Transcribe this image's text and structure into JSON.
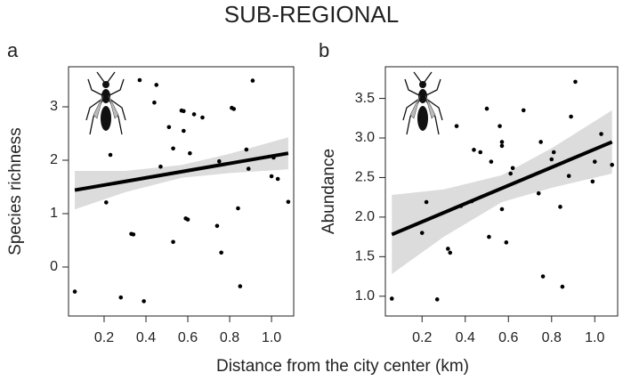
{
  "title": "SUB-REGIONAL",
  "xlabel": "Distance from the city center (km)",
  "chart_data": [
    {
      "type": "scatter",
      "panel_label": "a",
      "ylabel": "Species richness",
      "color": "#000000",
      "band_color": "#dcdcdc",
      "xlim": [
        0.03,
        1.106
      ],
      "ylim": [
        -0.917,
        3.75
      ],
      "xticks": [
        0.2,
        0.4,
        0.6,
        0.8,
        {
          "value": 1.0,
          "label": "1.0"
        }
      ],
      "yticks": [
        0,
        1,
        2,
        3
      ],
      "x": [
        0.06,
        0.21,
        0.23,
        0.28,
        0.33,
        0.34,
        0.37,
        0.39,
        0.44,
        0.45,
        0.47,
        0.51,
        0.53,
        0.53,
        0.57,
        0.58,
        0.58,
        0.59,
        0.6,
        0.61,
        0.63,
        0.67,
        0.74,
        0.75,
        0.76,
        0.81,
        0.82,
        0.84,
        0.85,
        0.88,
        0.89,
        0.91,
        1.0,
        1.01,
        1.03,
        1.08
      ],
      "values": [
        -0.46,
        1.21,
        2.1,
        -0.57,
        0.62,
        0.61,
        3.5,
        -0.64,
        3.08,
        3.41,
        1.88,
        2.62,
        0.47,
        2.22,
        2.93,
        2.92,
        2.55,
        0.91,
        0.89,
        2.13,
        2.86,
        2.8,
        0.77,
        1.98,
        0.27,
        2.98,
        2.96,
        1.1,
        -0.36,
        2.2,
        1.84,
        3.49,
        1.7,
        2.05,
        1.65,
        1.22
      ],
      "fit": {
        "x": [
          0.06,
          1.08
        ],
        "values": [
          1.44,
          2.13
        ]
      },
      "band": {
        "x": [
          0.06,
          0.3,
          0.57,
          0.8,
          1.08
        ],
        "lower": [
          1.08,
          1.4,
          1.67,
          1.76,
          1.83
        ],
        "upper": [
          1.8,
          1.8,
          1.91,
          2.12,
          2.43
        ]
      }
    },
    {
      "type": "scatter",
      "panel_label": "b",
      "ylabel": "Abundance",
      "color": "#000000",
      "band_color": "#dcdcdc",
      "xlim": [
        0.03,
        1.106
      ],
      "ylim": [
        0.75,
        3.9
      ],
      "xticks": [
        0.2,
        0.4,
        0.6,
        0.8,
        {
          "value": 1.0,
          "label": "1.0"
        }
      ],
      "yticks": [
        {
          "value": 1.0,
          "label": "1.0"
        },
        1.5,
        {
          "value": 2.0,
          "label": "2.0"
        },
        2.5,
        {
          "value": 3.0,
          "label": "3.0"
        },
        3.5
      ],
      "x": [
        0.06,
        0.2,
        0.22,
        0.27,
        0.32,
        0.33,
        0.36,
        0.38,
        0.43,
        0.44,
        0.47,
        0.5,
        0.51,
        0.52,
        0.56,
        0.57,
        0.57,
        0.57,
        0.59,
        0.61,
        0.62,
        0.67,
        0.74,
        0.75,
        0.76,
        0.8,
        0.81,
        0.84,
        0.85,
        0.88,
        0.89,
        0.91,
        0.99,
        1.0,
        1.03,
        1.08
      ],
      "values": [
        0.97,
        1.8,
        2.19,
        0.96,
        1.6,
        1.55,
        3.15,
        2.14,
        2.2,
        2.85,
        2.82,
        3.37,
        1.75,
        2.7,
        3.15,
        2.95,
        2.9,
        2.1,
        1.68,
        2.55,
        2.62,
        3.35,
        2.3,
        2.95,
        1.25,
        2.73,
        2.82,
        2.13,
        1.12,
        2.52,
        3.27,
        3.71,
        2.45,
        2.7,
        3.05,
        2.66
      ],
      "fit": {
        "x": [
          0.06,
          1.08
        ],
        "values": [
          1.78,
          2.95
        ]
      },
      "band": {
        "x": [
          0.06,
          0.3,
          0.57,
          0.8,
          1.08
        ],
        "lower": [
          1.28,
          1.75,
          2.19,
          2.37,
          2.55
        ],
        "upper": [
          2.28,
          2.35,
          2.53,
          2.87,
          3.35
        ]
      }
    }
  ]
}
